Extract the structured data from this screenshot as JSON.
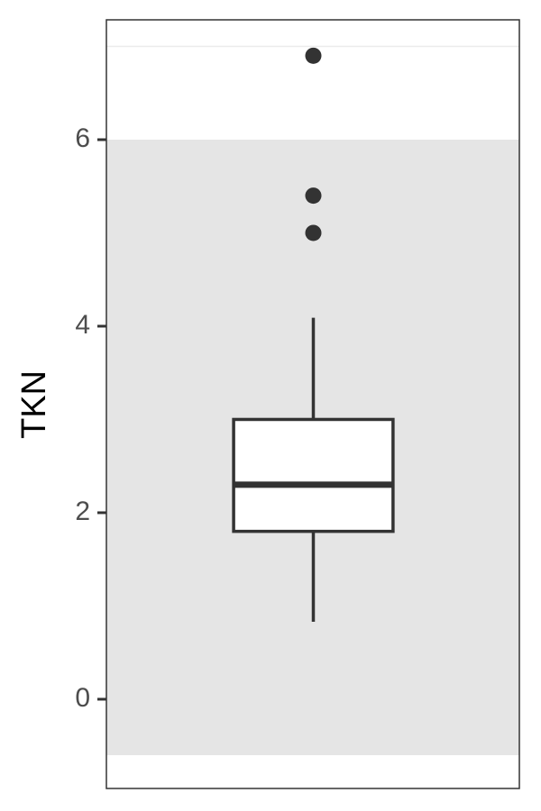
{
  "chart_data": {
    "type": "box",
    "ylabel": "TKN",
    "ylim": [
      -0.957,
      7.285
    ],
    "yticks": [
      0,
      2,
      4,
      6
    ],
    "shaded_range": [
      -0.6,
      6
    ],
    "shade_color": "#e5e5e5",
    "hline": 7,
    "hline_color": "#ebebeb",
    "box_color": "#333333",
    "box_fill": "#ffffff",
    "boxes": [
      {
        "whislo": 0.83,
        "q1": 1.8,
        "median": 2.3,
        "q3": 3.0,
        "whishi": 4.09,
        "fliers": [
          6.9,
          5.4,
          5.0
        ]
      }
    ]
  }
}
